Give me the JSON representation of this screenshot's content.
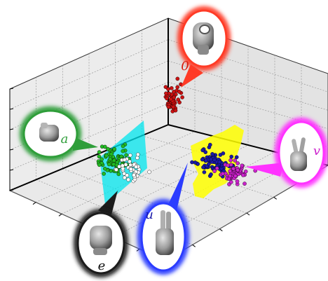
{
  "chart_data": {
    "type": "scatter",
    "projection": "3d",
    "grid": true,
    "axes_visible": false,
    "series": [
      {
        "name": "0",
        "color": "#cc1111",
        "glow": "#ff3b26",
        "icon": "hand-sign-zero-icon"
      },
      {
        "name": "a",
        "color": "#22bb22",
        "glow": "#2f9e3a",
        "icon": "hand-sign-a-icon"
      },
      {
        "name": "e",
        "color": "#ffffff",
        "glow": "#1c1c1c",
        "icon": "hand-sign-e-icon"
      },
      {
        "name": "u",
        "color": "#1a1aa8",
        "glow": "#2b3cff",
        "icon": "hand-sign-u-icon"
      },
      {
        "name": "v",
        "color": "#cc22cc",
        "glow": "#ff33ff",
        "icon": "hand-sign-v-icon"
      }
    ],
    "boundary_planes": [
      {
        "name": "a-e",
        "color": "#00e5ee"
      },
      {
        "name": "u-v",
        "color": "#ffff00"
      }
    ]
  }
}
